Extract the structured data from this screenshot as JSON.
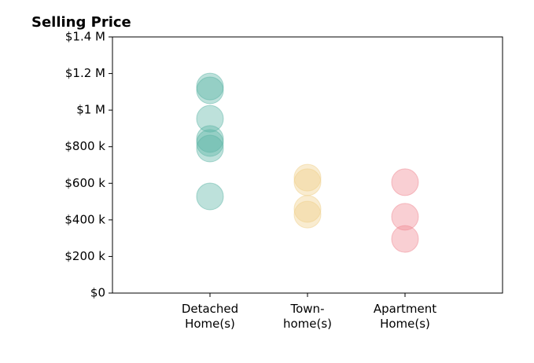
{
  "chart_data": {
    "type": "strip",
    "title": "Selling Price",
    "groups": [
      {
        "category": "Detached\nHome(s)",
        "color": "#5ab4a4",
        "values": [
          1129000,
          1108000,
          953000,
          842000,
          820000,
          790000,
          528000
        ]
      },
      {
        "category": "Town-\nhome(s)",
        "color": "#efd08a",
        "values": [
          631000,
          606000,
          460000,
          429000
        ]
      },
      {
        "category": "Apartment\nHome(s)",
        "color": "#f08892",
        "values": [
          606000,
          417000,
          296000
        ]
      }
    ],
    "ylim": [
      0,
      1400000
    ],
    "yticks": [
      {
        "value": 0,
        "label": "$0"
      },
      {
        "value": 200000,
        "label": "$200 k"
      },
      {
        "value": 400000,
        "label": "$400 k"
      },
      {
        "value": 600000,
        "label": "$600 k"
      },
      {
        "value": 800000,
        "label": "$800 k"
      },
      {
        "value": 1000000,
        "label": "$1 M"
      },
      {
        "value": 1200000,
        "label": "$1.2 M"
      },
      {
        "value": 1400000,
        "label": "$1.4 M"
      }
    ]
  }
}
